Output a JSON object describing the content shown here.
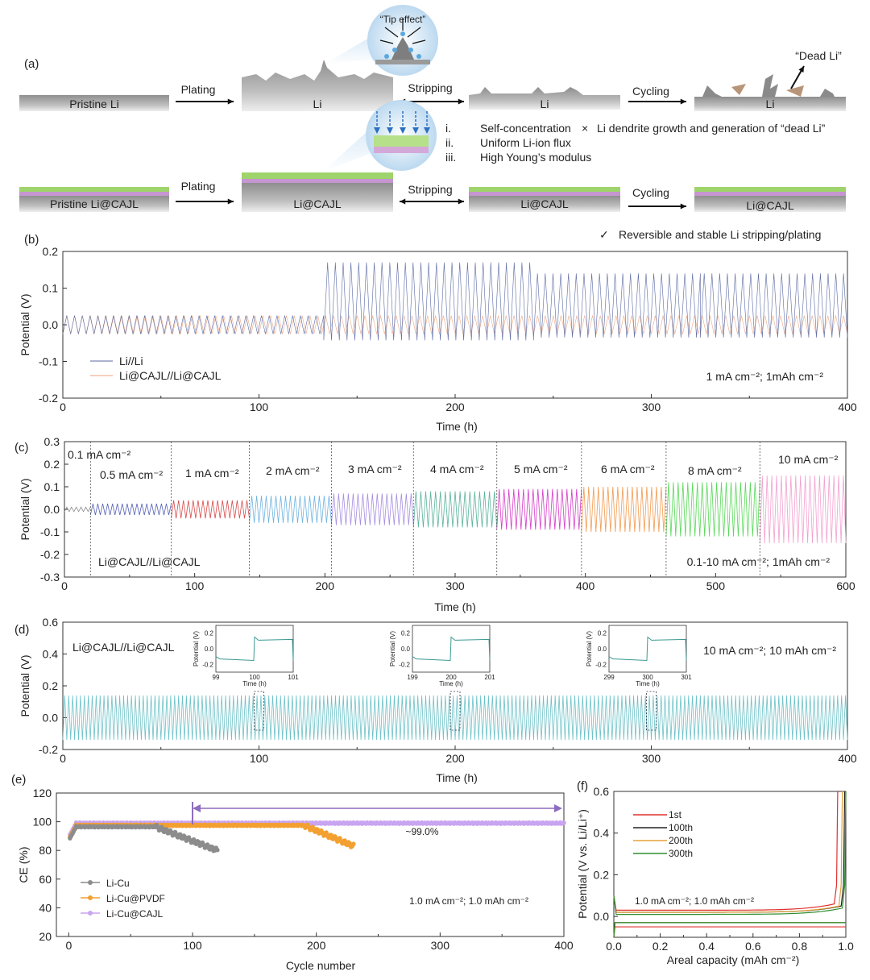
{
  "colors": {
    "li_li": "#5b6aa3",
    "li_cajl": "#e9a07a",
    "rate_colors": [
      "#8a8a8a",
      "#5560b8",
      "#d94a4a",
      "#6fb3e0",
      "#a68de0",
      "#5ab39a",
      "#d63cc9",
      "#f29a50",
      "#58d858",
      "#f2a0d0"
    ],
    "panel_d": "#6cc1c7",
    "li_cu": "#8c8c8c",
    "li_cu_pvdf": "#f3a030",
    "li_cu_cajl": "#c9a4f0",
    "cycle_arrow": "#8e6cc0",
    "f_colors": [
      "#e0312e",
      "#222222",
      "#e5a23a",
      "#2f8f2f"
    ]
  },
  "panel_a": {
    "letter": "(a)",
    "tip_effect": "“Tip effect”",
    "dead_li": "“Dead Li”",
    "top_row": {
      "pristine": "Pristine Li",
      "plating": "Plating",
      "li1": "Li",
      "stripping": "Stripping",
      "li2": "Li",
      "cycling": "Cycling",
      "li3": "Li"
    },
    "middle": {
      "items": [
        {
          "num": "i.",
          "text": "Self-concentration"
        },
        {
          "num": "ii.",
          "text": "Uniform Li-ion flux"
        },
        {
          "num": "iii.",
          "text": "High Young’s modulus"
        }
      ],
      "cross": "×",
      "dendrite_text": "Li dendrite growth and generation of “dead Li”"
    },
    "bottom_row": {
      "pristine": "Pristine Li@CAJL",
      "plating": "Plating",
      "li1": "Li@CAJL",
      "stripping": "Stripping",
      "li2": "Li@CAJL",
      "cycling": "Cycling",
      "li3": "Li@CAJL"
    },
    "check": "✓",
    "reversible_text": "Reversible and stable Li stripping/plating"
  },
  "chart_data": [
    {
      "panel": "(b)",
      "type": "line",
      "xlabel": "Time (h)",
      "ylabel": "Potential (V)",
      "xlim": [
        0,
        400
      ],
      "ylim": [
        -0.2,
        0.2
      ],
      "xticks": [
        "0",
        "100",
        "200",
        "300",
        "400"
      ],
      "yticks": [
        "-0.2",
        "-0.1",
        "0.0",
        "0.1",
        "0.2"
      ],
      "legend": [
        "Li//Li",
        "Li@CAJL//Li@CAJL"
      ],
      "annotation": "1 mA cm⁻²; 1mAh cm⁻²",
      "series": [
        {
          "name": "Li//Li",
          "segments": [
            {
              "t": [
                0,
                133
              ],
              "amp": 0.025
            },
            {
              "t": [
                133,
                240
              ],
              "amp": 0.17
            },
            {
              "t": [
                240,
                325
              ],
              "amp": 0.14
            },
            {
              "t": [
                325,
                400
              ],
              "amp": 0.14
            }
          ]
        },
        {
          "name": "Li@CAJL//Li@CAJL",
          "amp": 0.025,
          "t": [
            0,
            400
          ]
        }
      ]
    },
    {
      "panel": "(c)",
      "type": "line",
      "xlabel": "Time (h)",
      "ylabel": "Potential (V)",
      "xlim": [
        0,
        600
      ],
      "ylim": [
        -0.3,
        0.3
      ],
      "xticks": [
        "0",
        "100",
        "200",
        "300",
        "400",
        "500",
        "600"
      ],
      "yticks": [
        "-0.3",
        "-0.2",
        "-0.1",
        "0.0",
        "0.1",
        "0.2",
        "0.3"
      ],
      "series_label": "Li@CAJL//Li@CAJL",
      "annotation": "0.1-10 mA cm⁻²; 1mAh cm⁻²",
      "segments": [
        {
          "label": "0.1 mA cm⁻²",
          "t0": 0,
          "t1": 20,
          "amp": 0.01
        },
        {
          "label": "0.5 mA cm⁻²",
          "t0": 20,
          "t1": 82,
          "amp": 0.025
        },
        {
          "label": "1 mA cm⁻²",
          "t0": 82,
          "t1": 142,
          "amp": 0.04
        },
        {
          "label": "2 mA cm⁻²",
          "t0": 142,
          "t1": 205,
          "amp": 0.06
        },
        {
          "label": "3 mA cm⁻²",
          "t0": 205,
          "t1": 268,
          "amp": 0.07
        },
        {
          "label": "4 mA cm⁻²",
          "t0": 268,
          "t1": 332,
          "amp": 0.08
        },
        {
          "label": "5 mA cm⁻²",
          "t0": 332,
          "t1": 397,
          "amp": 0.09
        },
        {
          "label": "6 mA cm⁻²",
          "t0": 397,
          "t1": 462,
          "amp": 0.1
        },
        {
          "label": "8 mA cm⁻²",
          "t0": 462,
          "t1": 534,
          "amp": 0.12
        },
        {
          "label": "10 mA cm⁻²",
          "t0": 534,
          "t1": 600,
          "amp": 0.15
        }
      ]
    },
    {
      "panel": "(d)",
      "type": "line",
      "xlabel": "Time (h)",
      "ylabel": "Potential (V)",
      "xlim": [
        0,
        400
      ],
      "ylim": [
        -0.2,
        0.6
      ],
      "xticks": [
        "0",
        "100",
        "200",
        "300",
        "400"
      ],
      "yticks": [
        "-0.2",
        "0.0",
        "0.2",
        "0.4",
        "0.6"
      ],
      "series_label": "Li@CAJL//Li@CAJL",
      "annotation": "10 mA cm⁻²; 10 mAh cm⁻²",
      "amp": 0.14,
      "period_h": 2,
      "insets": [
        {
          "center": 100,
          "xticks": [
            "99",
            "100",
            "101"
          ],
          "ylabel": "Potential (V)",
          "xlabel": "Time (h)",
          "yticks": [
            "-0.2",
            "0.0",
            "0.2"
          ]
        },
        {
          "center": 200,
          "xticks": [
            "199",
            "200",
            "201"
          ],
          "ylabel": "Potential (V)",
          "xlabel": "Time (h)",
          "yticks": [
            "-0.2",
            "0.0",
            "0.2"
          ]
        },
        {
          "center": 300,
          "xticks": [
            "299",
            "300",
            "301"
          ],
          "ylabel": "Potential (V)",
          "xlabel": "Time (h)",
          "yticks": [
            "-0.2",
            "0.0",
            "0.2"
          ]
        }
      ]
    },
    {
      "panel": "(e)",
      "type": "scatter",
      "xlabel": "Cycle number",
      "ylabel": "CE (%)",
      "xlim": [
        0,
        400
      ],
      "ylim": [
        20,
        120
      ],
      "xticks": [
        "0",
        "100",
        "200",
        "300",
        "400"
      ],
      "yticks": [
        "20",
        "40",
        "60",
        "80",
        "100",
        "120"
      ],
      "legend": [
        "Li-Cu",
        "Li-Cu@PVDF",
        "Li-Cu@CAJL"
      ],
      "annotation": "1.0 mA cm⁻²; 1.0 mAh cm⁻²",
      "ce_label": "~99.0%",
      "series": [
        {
          "name": "Li-Cu",
          "x_range": [
            1,
            120
          ],
          "plateau": 96.5,
          "decline_start": 70,
          "end_value": 80
        },
        {
          "name": "Li-Cu@PVDF",
          "x_range": [
            1,
            230
          ],
          "plateau": 97.5,
          "decline_start": 190,
          "end_value": 83
        },
        {
          "name": "Li-Cu@CAJL",
          "x_range": [
            1,
            400
          ],
          "plateau": 99.0
        }
      ],
      "cycle_marker": [
        100,
        400
      ]
    },
    {
      "panel": "(f)",
      "type": "line",
      "xlabel": "Areal capacity (mAh cm⁻²)",
      "ylabel": "Potential (V vs. Li/Li⁺)",
      "xlim": [
        0,
        1.0
      ],
      "ylim": [
        -0.1,
        0.6
      ],
      "xticks": [
        "0.0",
        "0.2",
        "0.4",
        "0.6",
        "0.8",
        "1.0"
      ],
      "yticks": [
        "0.0",
        "0.2",
        "0.4",
        "0.6"
      ],
      "legend": [
        "1st",
        "100th",
        "200th",
        "300th"
      ],
      "annotation": "1.0 mA cm⁻²; 1.0 mAh cm⁻²",
      "series": [
        {
          "name": "1st",
          "strip": 0.03,
          "plate": -0.05,
          "rise_at": 0.95
        },
        {
          "name": "100th",
          "strip": 0.02,
          "plate": -0.03,
          "rise_at": 0.98
        },
        {
          "name": "200th",
          "strip": 0.02,
          "plate": -0.03,
          "rise_at": 0.97
        },
        {
          "name": "300th",
          "strip": 0.01,
          "plate": -0.03,
          "rise_at": 0.985
        }
      ]
    }
  ]
}
